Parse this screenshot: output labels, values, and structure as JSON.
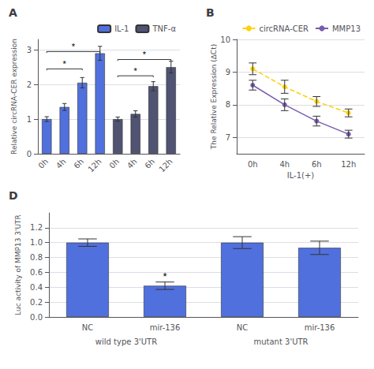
{
  "chart_data": [
    {
      "type": "bar",
      "title": "A",
      "ylabel": "Relative circRNA-CER expression",
      "categories": [
        "0h",
        "4h",
        "6h",
        "12h",
        "0h",
        "4h",
        "6h",
        "12h"
      ],
      "series": [
        {
          "name": "IL-1",
          "values": [
            1.0,
            1.35,
            2.05,
            2.9,
            null,
            null,
            null,
            null
          ],
          "errors": [
            0.07,
            0.1,
            0.15,
            0.2,
            null,
            null,
            null,
            null
          ]
        },
        {
          "name": "TNF-α",
          "values": [
            null,
            null,
            null,
            null,
            1.0,
            1.15,
            1.95,
            2.5
          ],
          "errors": [
            null,
            null,
            null,
            null,
            0.06,
            0.09,
            0.13,
            0.17
          ]
        }
      ],
      "ylim": [
        0,
        3.3
      ],
      "yticks": [
        0,
        1,
        2,
        3
      ],
      "legend": "upper right",
      "annotations": [
        {
          "text": "*",
          "from": 0,
          "to": 2,
          "y": 2.45
        },
        {
          "text": "*",
          "from": 0,
          "to": 3,
          "y": 2.95
        },
        {
          "text": "*",
          "from": 4,
          "to": 6,
          "y": 2.25
        },
        {
          "text": "*",
          "from": 4,
          "to": 7,
          "y": 2.72
        }
      ]
    },
    {
      "type": "line",
      "title": "B",
      "xlabel": "IL-1(+)",
      "ylabel": "The Relative Expression (∆Ct)",
      "categories": [
        "0h",
        "4h",
        "6h",
        "12h"
      ],
      "series": [
        {
          "name": "circRNA-CER",
          "values": [
            9.1,
            8.55,
            8.1,
            7.75
          ],
          "errors": [
            0.18,
            0.2,
            0.15,
            0.12
          ],
          "line_style": "dashed",
          "marker": "circle"
        },
        {
          "name": "MMP13",
          "values": [
            8.6,
            8.0,
            7.5,
            7.1
          ],
          "errors": [
            0.15,
            0.18,
            0.15,
            0.12
          ],
          "line_style": "solid",
          "marker": "circle"
        }
      ],
      "ylim": [
        6.5,
        10.0
      ],
      "yticks": [
        7,
        8,
        9,
        10
      ],
      "legend": "upper right"
    },
    {
      "type": "bar",
      "title": "D",
      "ylabel": "Luc activity of MMP13 3'UTR",
      "categories": [
        "NC",
        "mir-136",
        "NC",
        "mir-136"
      ],
      "values": [
        1.0,
        0.42,
        1.0,
        0.93
      ],
      "errors": [
        0.05,
        0.05,
        0.08,
        0.09
      ],
      "group_labels": [
        "wild type 3'UTR",
        "mutant 3'UTR"
      ],
      "ylim": [
        0,
        1.4
      ],
      "yticks": [
        {
          "value": 0,
          "label": "0.0"
        },
        0.2,
        0.4,
        0.6,
        0.8,
        {
          "value": 1,
          "label": "1.0"
        },
        1.2
      ],
      "annotations": [
        {
          "text": "*",
          "category": 1
        }
      ]
    }
  ]
}
